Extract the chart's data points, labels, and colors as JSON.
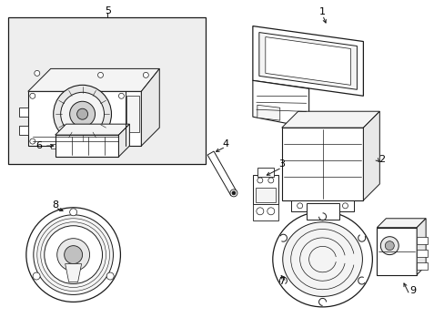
{
  "bg_color": "#ffffff",
  "line_color": "#1a1a1a",
  "fill_light": "#e8e8e8",
  "fill_lighter": "#f4f4f4",
  "fill_box5": "#eeeeee",
  "fig_width": 4.89,
  "fig_height": 3.6,
  "dpi": 100,
  "label_fontsize": 8,
  "arrow_lw": 0.7
}
